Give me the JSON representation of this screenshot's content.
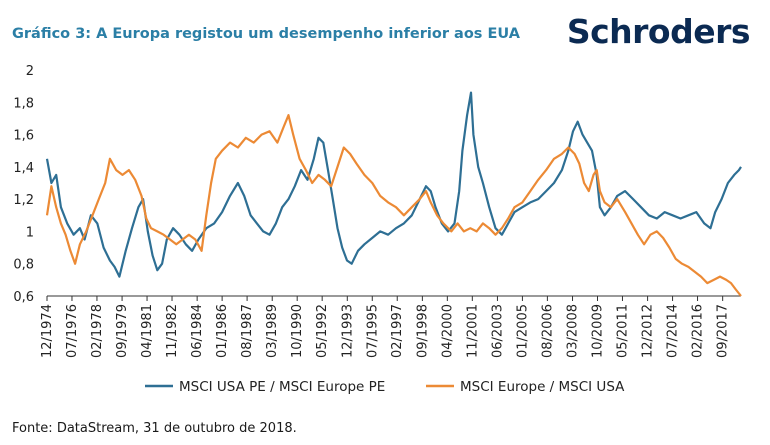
{
  "title": "Gráfico 3: A Europa registou um desempenho inferior aos EUA",
  "brand": "Schroders",
  "source": "Fonte: DataStream, 31 de outubro de 2018.",
  "colors": {
    "usa_pe": "#2e6f94",
    "europe_usa": "#ec8a35",
    "title": "#2b7fa6",
    "brand": "#0b2a52"
  },
  "chart_data": {
    "type": "line",
    "ylim": [
      0.6,
      2.0
    ],
    "yticks": [
      0.6,
      0.8,
      1,
      1.2,
      1.4,
      1.6,
      1.8,
      2
    ],
    "ytick_labels": [
      "0,6",
      "0,8",
      "1",
      "1,2",
      "1,4",
      "1,6",
      "1,8",
      "2"
    ],
    "xlim": [
      1974.92,
      2018.83
    ],
    "xticks": [
      1974.92,
      1976.5,
      1978.08,
      1979.67,
      1981.25,
      1982.83,
      1984.42,
      1986.0,
      1987.58,
      1989.17,
      1990.75,
      1992.33,
      1993.92,
      1995.5,
      1997.08,
      1998.67,
      2000.25,
      2001.83,
      2003.42,
      2005.0,
      2006.58,
      2008.17,
      2009.75,
      2011.33,
      2012.92,
      2014.5,
      2016.08,
      2017.67
    ],
    "xtick_labels": [
      "12/1974",
      "07/1976",
      "02/1978",
      "09/1979",
      "04/1981",
      "11/1982",
      "06/1984",
      "01/1986",
      "08/1987",
      "03/1989",
      "10/1990",
      "05/1992",
      "12/1993",
      "07/1995",
      "02/1997",
      "09/1998",
      "04/2000",
      "11/2001",
      "06/2003",
      "01/2005",
      "08/2006",
      "03/2008",
      "10/2009",
      "05/2011",
      "12/2012",
      "07/2014",
      "02/2016",
      "09/2017"
    ],
    "grid": false,
    "legend_position": "bottom",
    "series": [
      {
        "name": "MSCI USA PE / MSCI Europe PE",
        "color": "#2e6f94",
        "points": [
          [
            1974.92,
            1.45
          ],
          [
            1975.2,
            1.3
          ],
          [
            1975.5,
            1.35
          ],
          [
            1975.8,
            1.15
          ],
          [
            1976.2,
            1.05
          ],
          [
            1976.6,
            0.98
          ],
          [
            1977.0,
            1.02
          ],
          [
            1977.3,
            0.95
          ],
          [
            1977.7,
            1.1
          ],
          [
            1978.1,
            1.05
          ],
          [
            1978.5,
            0.9
          ],
          [
            1978.9,
            0.82
          ],
          [
            1979.2,
            0.78
          ],
          [
            1979.5,
            0.72
          ],
          [
            1979.9,
            0.88
          ],
          [
            1980.3,
            1.02
          ],
          [
            1980.7,
            1.15
          ],
          [
            1981.0,
            1.2
          ],
          [
            1981.3,
            1.0
          ],
          [
            1981.6,
            0.85
          ],
          [
            1981.9,
            0.76
          ],
          [
            1982.2,
            0.8
          ],
          [
            1982.5,
            0.95
          ],
          [
            1982.9,
            1.02
          ],
          [
            1983.3,
            0.98
          ],
          [
            1983.7,
            0.92
          ],
          [
            1984.1,
            0.88
          ],
          [
            1984.5,
            0.95
          ],
          [
            1985.0,
            1.02
          ],
          [
            1985.5,
            1.05
          ],
          [
            1986.0,
            1.12
          ],
          [
            1986.5,
            1.22
          ],
          [
            1987.0,
            1.3
          ],
          [
            1987.4,
            1.22
          ],
          [
            1987.8,
            1.1
          ],
          [
            1988.2,
            1.05
          ],
          [
            1988.6,
            1.0
          ],
          [
            1989.0,
            0.98
          ],
          [
            1989.4,
            1.05
          ],
          [
            1989.8,
            1.15
          ],
          [
            1990.2,
            1.2
          ],
          [
            1990.6,
            1.28
          ],
          [
            1991.0,
            1.38
          ],
          [
            1991.4,
            1.32
          ],
          [
            1991.8,
            1.45
          ],
          [
            1992.1,
            1.58
          ],
          [
            1992.4,
            1.55
          ],
          [
            1992.7,
            1.38
          ],
          [
            1993.0,
            1.2
          ],
          [
            1993.3,
            1.02
          ],
          [
            1993.6,
            0.9
          ],
          [
            1993.9,
            0.82
          ],
          [
            1994.2,
            0.8
          ],
          [
            1994.6,
            0.88
          ],
          [
            1995.0,
            0.92
          ],
          [
            1995.5,
            0.96
          ],
          [
            1996.0,
            1.0
          ],
          [
            1996.5,
            0.98
          ],
          [
            1997.0,
            1.02
          ],
          [
            1997.5,
            1.05
          ],
          [
            1998.0,
            1.1
          ],
          [
            1998.5,
            1.2
          ],
          [
            1998.9,
            1.28
          ],
          [
            1999.2,
            1.25
          ],
          [
            1999.5,
            1.15
          ],
          [
            1999.9,
            1.05
          ],
          [
            2000.3,
            1.0
          ],
          [
            2000.7,
            1.05
          ],
          [
            2001.0,
            1.25
          ],
          [
            2001.2,
            1.5
          ],
          [
            2001.5,
            1.72
          ],
          [
            2001.75,
            1.86
          ],
          [
            2001.9,
            1.6
          ],
          [
            2002.2,
            1.4
          ],
          [
            2002.5,
            1.3
          ],
          [
            2002.9,
            1.15
          ],
          [
            2003.3,
            1.02
          ],
          [
            2003.7,
            0.98
          ],
          [
            2004.1,
            1.05
          ],
          [
            2004.5,
            1.12
          ],
          [
            2005.0,
            1.15
          ],
          [
            2005.5,
            1.18
          ],
          [
            2006.0,
            1.2
          ],
          [
            2006.5,
            1.25
          ],
          [
            2007.0,
            1.3
          ],
          [
            2007.5,
            1.38
          ],
          [
            2007.9,
            1.5
          ],
          [
            2008.2,
            1.62
          ],
          [
            2008.5,
            1.68
          ],
          [
            2008.8,
            1.6
          ],
          [
            2009.1,
            1.55
          ],
          [
            2009.4,
            1.5
          ],
          [
            2009.7,
            1.35
          ],
          [
            2009.9,
            1.15
          ],
          [
            2010.2,
            1.1
          ],
          [
            2010.6,
            1.15
          ],
          [
            2011.0,
            1.22
          ],
          [
            2011.5,
            1.25
          ],
          [
            2012.0,
            1.2
          ],
          [
            2012.5,
            1.15
          ],
          [
            2013.0,
            1.1
          ],
          [
            2013.5,
            1.08
          ],
          [
            2014.0,
            1.12
          ],
          [
            2014.5,
            1.1
          ],
          [
            2015.0,
            1.08
          ],
          [
            2015.5,
            1.1
          ],
          [
            2016.0,
            1.12
          ],
          [
            2016.5,
            1.05
          ],
          [
            2016.9,
            1.02
          ],
          [
            2017.2,
            1.12
          ],
          [
            2017.6,
            1.2
          ],
          [
            2018.0,
            1.3
          ],
          [
            2018.4,
            1.35
          ],
          [
            2018.7,
            1.38
          ],
          [
            2018.83,
            1.4
          ]
        ]
      },
      {
        "name": "MSCI Europe / MSCI USA",
        "color": "#ec8a35",
        "points": [
          [
            1974.92,
            1.1
          ],
          [
            1975.2,
            1.28
          ],
          [
            1975.5,
            1.15
          ],
          [
            1975.8,
            1.05
          ],
          [
            1976.1,
            0.98
          ],
          [
            1976.4,
            0.88
          ],
          [
            1976.7,
            0.8
          ],
          [
            1977.0,
            0.92
          ],
          [
            1977.4,
            1.0
          ],
          [
            1977.8,
            1.1
          ],
          [
            1978.2,
            1.2
          ],
          [
            1978.6,
            1.3
          ],
          [
            1978.9,
            1.45
          ],
          [
            1979.3,
            1.38
          ],
          [
            1979.7,
            1.35
          ],
          [
            1980.1,
            1.38
          ],
          [
            1980.5,
            1.32
          ],
          [
            1980.9,
            1.22
          ],
          [
            1981.2,
            1.08
          ],
          [
            1981.5,
            1.02
          ],
          [
            1981.9,
            1.0
          ],
          [
            1982.3,
            0.98
          ],
          [
            1982.7,
            0.95
          ],
          [
            1983.1,
            0.92
          ],
          [
            1983.5,
            0.95
          ],
          [
            1983.9,
            0.98
          ],
          [
            1984.3,
            0.95
          ],
          [
            1984.7,
            0.88
          ],
          [
            1985.0,
            1.1
          ],
          [
            1985.3,
            1.3
          ],
          [
            1985.6,
            1.45
          ],
          [
            1986.0,
            1.5
          ],
          [
            1986.5,
            1.55
          ],
          [
            1987.0,
            1.52
          ],
          [
            1987.5,
            1.58
          ],
          [
            1988.0,
            1.55
          ],
          [
            1988.5,
            1.6
          ],
          [
            1989.0,
            1.62
          ],
          [
            1989.5,
            1.55
          ],
          [
            1989.9,
            1.65
          ],
          [
            1990.2,
            1.72
          ],
          [
            1990.5,
            1.6
          ],
          [
            1990.9,
            1.45
          ],
          [
            1991.3,
            1.38
          ],
          [
            1991.7,
            1.3
          ],
          [
            1992.1,
            1.35
          ],
          [
            1992.5,
            1.32
          ],
          [
            1992.9,
            1.28
          ],
          [
            1993.3,
            1.4
          ],
          [
            1993.7,
            1.52
          ],
          [
            1994.1,
            1.48
          ],
          [
            1994.5,
            1.42
          ],
          [
            1995.0,
            1.35
          ],
          [
            1995.5,
            1.3
          ],
          [
            1996.0,
            1.22
          ],
          [
            1996.5,
            1.18
          ],
          [
            1997.0,
            1.15
          ],
          [
            1997.5,
            1.1
          ],
          [
            1998.0,
            1.15
          ],
          [
            1998.5,
            1.2
          ],
          [
            1998.9,
            1.25
          ],
          [
            1999.2,
            1.18
          ],
          [
            1999.6,
            1.1
          ],
          [
            2000.0,
            1.05
          ],
          [
            2000.5,
            1.0
          ],
          [
            2000.9,
            1.05
          ],
          [
            2001.3,
            1.0
          ],
          [
            2001.7,
            1.02
          ],
          [
            2002.1,
            1.0
          ],
          [
            2002.5,
            1.05
          ],
          [
            2002.9,
            1.02
          ],
          [
            2003.3,
            0.98
          ],
          [
            2003.7,
            1.02
          ],
          [
            2004.1,
            1.08
          ],
          [
            2004.5,
            1.15
          ],
          [
            2005.0,
            1.18
          ],
          [
            2005.5,
            1.25
          ],
          [
            2006.0,
            1.32
          ],
          [
            2006.5,
            1.38
          ],
          [
            2007.0,
            1.45
          ],
          [
            2007.5,
            1.48
          ],
          [
            2007.9,
            1.52
          ],
          [
            2008.3,
            1.48
          ],
          [
            2008.6,
            1.42
          ],
          [
            2008.9,
            1.3
          ],
          [
            2009.2,
            1.25
          ],
          [
            2009.5,
            1.35
          ],
          [
            2009.7,
            1.38
          ],
          [
            2009.9,
            1.25
          ],
          [
            2010.2,
            1.18
          ],
          [
            2010.6,
            1.15
          ],
          [
            2011.0,
            1.2
          ],
          [
            2011.5,
            1.12
          ],
          [
            2011.9,
            1.05
          ],
          [
            2012.3,
            0.98
          ],
          [
            2012.7,
            0.92
          ],
          [
            2013.1,
            0.98
          ],
          [
            2013.5,
            1.0
          ],
          [
            2013.9,
            0.96
          ],
          [
            2014.3,
            0.9
          ],
          [
            2014.7,
            0.83
          ],
          [
            2015.1,
            0.8
          ],
          [
            2015.5,
            0.78
          ],
          [
            2015.9,
            0.75
          ],
          [
            2016.3,
            0.72
          ],
          [
            2016.7,
            0.68
          ],
          [
            2017.1,
            0.7
          ],
          [
            2017.5,
            0.72
          ],
          [
            2017.9,
            0.7
          ],
          [
            2018.2,
            0.68
          ],
          [
            2018.5,
            0.64
          ],
          [
            2018.83,
            0.6
          ]
        ]
      }
    ]
  }
}
